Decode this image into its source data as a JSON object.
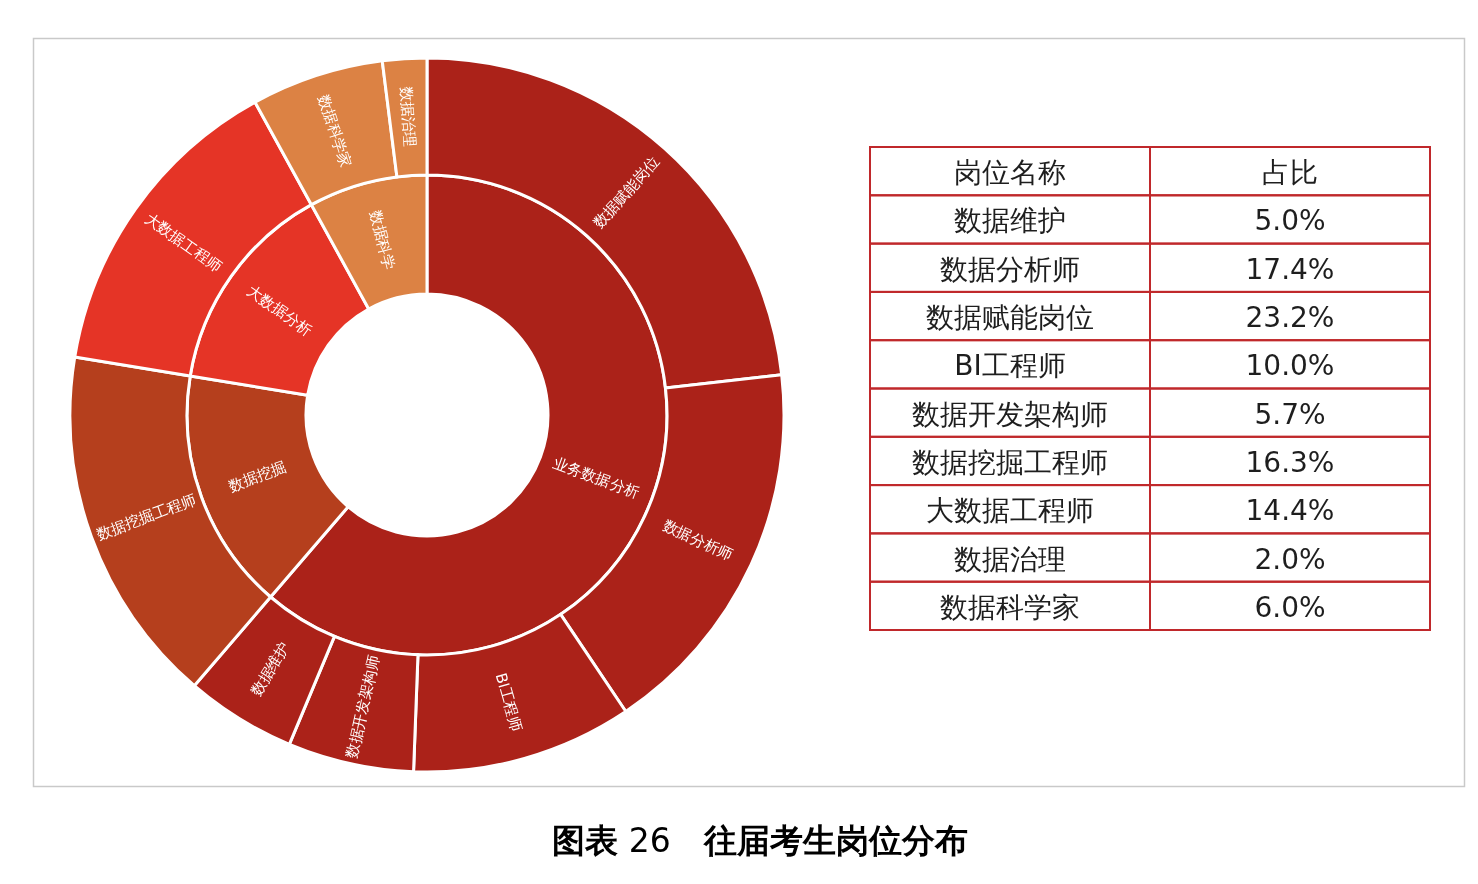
{
  "chart_data": [
    {
      "type": "donut",
      "categories": [
        "业务数据分析",
        "数据挖掘",
        "大数据分析",
        "数据科学"
      ],
      "values": [
        61.3,
        16.3,
        14.4,
        8.0
      ],
      "colors": [
        "#ab2219",
        "#b53f1d",
        "#e53426",
        "#dc8244"
      ],
      "annotations": [
        "**图表** 26　**往届考生岗位分布**"
      ]
    },
    {
      "type": "donut",
      "categories": [
        "数据赋能岗位",
        "数据分析师",
        "BI工程师",
        "数据开发架构师",
        "数据维护",
        "数据挖掘工程师",
        "大数据工程师",
        "数据科学家",
        "数据治理"
      ],
      "values": [
        23.2,
        17.4,
        10.0,
        5.7,
        5.0,
        16.3,
        14.4,
        6.0,
        2.0
      ],
      "colors": [
        "#ab2219",
        "#ab2219",
        "#ab2219",
        "#ab2219",
        "#ab2219",
        "#b53f1d",
        "#e53426",
        "#dc8244",
        "#dc8244"
      ]
    },
    {
      "type": "other",
      "annotations": [
        "岗位名称",
        "占比",
        "数据维护",
        "5.0%",
        "数据分析师",
        "17.4%",
        "数据赋能岗位",
        "23.2%",
        "BI工程师",
        "10.0%",
        "数据开发架构师",
        "5.7%",
        "数据挖掘工程师",
        "16.3%",
        "大数据工程师",
        "14.4%",
        "数据治理",
        "2.0%",
        "数据科学家",
        "6.0%"
      ]
    }
  ]
}
